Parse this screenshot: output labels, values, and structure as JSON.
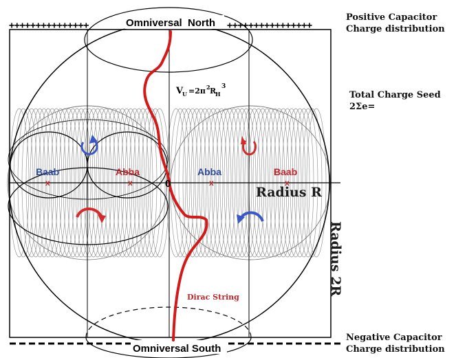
{
  "poles": {
    "north": "Omniversal  North",
    "south": "Omniversal South"
  },
  "capacitor": {
    "positive_line1": "Positive Capacitor",
    "positive_line2": "Charge distribution",
    "negative_line1": "Negative Capacitor",
    "negative_line2": "Charge distribution",
    "plus_row_left": "+++++++++++++++",
    "plus_row_right": "++++++++++++++++"
  },
  "total_charge": {
    "line1": "Total Charge Seed",
    "line2": "2Σe="
  },
  "volume_formula": {
    "v": "V",
    "v_sub": "U",
    "eq": "=2π",
    "pi_sup": "2",
    "r": "R",
    "r_sub": "H",
    "r_sup": "3"
  },
  "tori": {
    "left_outer": "Baab",
    "left_inner": "Abba",
    "right_inner": "Abba",
    "right_outer": "Baab",
    "center": "0",
    "marker": "x"
  },
  "radius_labels": {
    "radius_r": "Radius R",
    "radius_2r": "Radius 2R"
  },
  "string_label": "Dirac String",
  "colors": {
    "blue_label": "#2c49a0",
    "red_label": "#c0262c",
    "string_red": "#d21a1a",
    "arrow_blue": "#3b56c6",
    "arrow_red": "#d42a2a",
    "line": "#000000",
    "coil": "#9a9a9a"
  }
}
